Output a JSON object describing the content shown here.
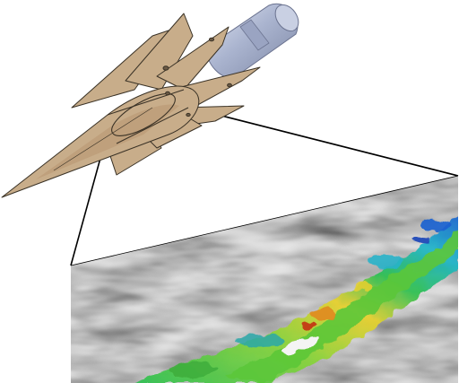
{
  "figure": {
    "body_color": "#c8ad8a",
    "body_edge_color": "#3a3226",
    "nozzle_color": "#aab4cf",
    "nozzle_edge_color": "#6b7390",
    "callout_line_color": "#000000",
    "slice_shades": [
      "#ffffff",
      "#bdbdbd",
      "#6a6a6a",
      "#1a1a1a"
    ],
    "flow_colors": [
      "#1b5fd0",
      "#21b6c8",
      "#2fbf53",
      "#8bd33a",
      "#e6d030",
      "#e08a1e",
      "#c43a16"
    ]
  }
}
